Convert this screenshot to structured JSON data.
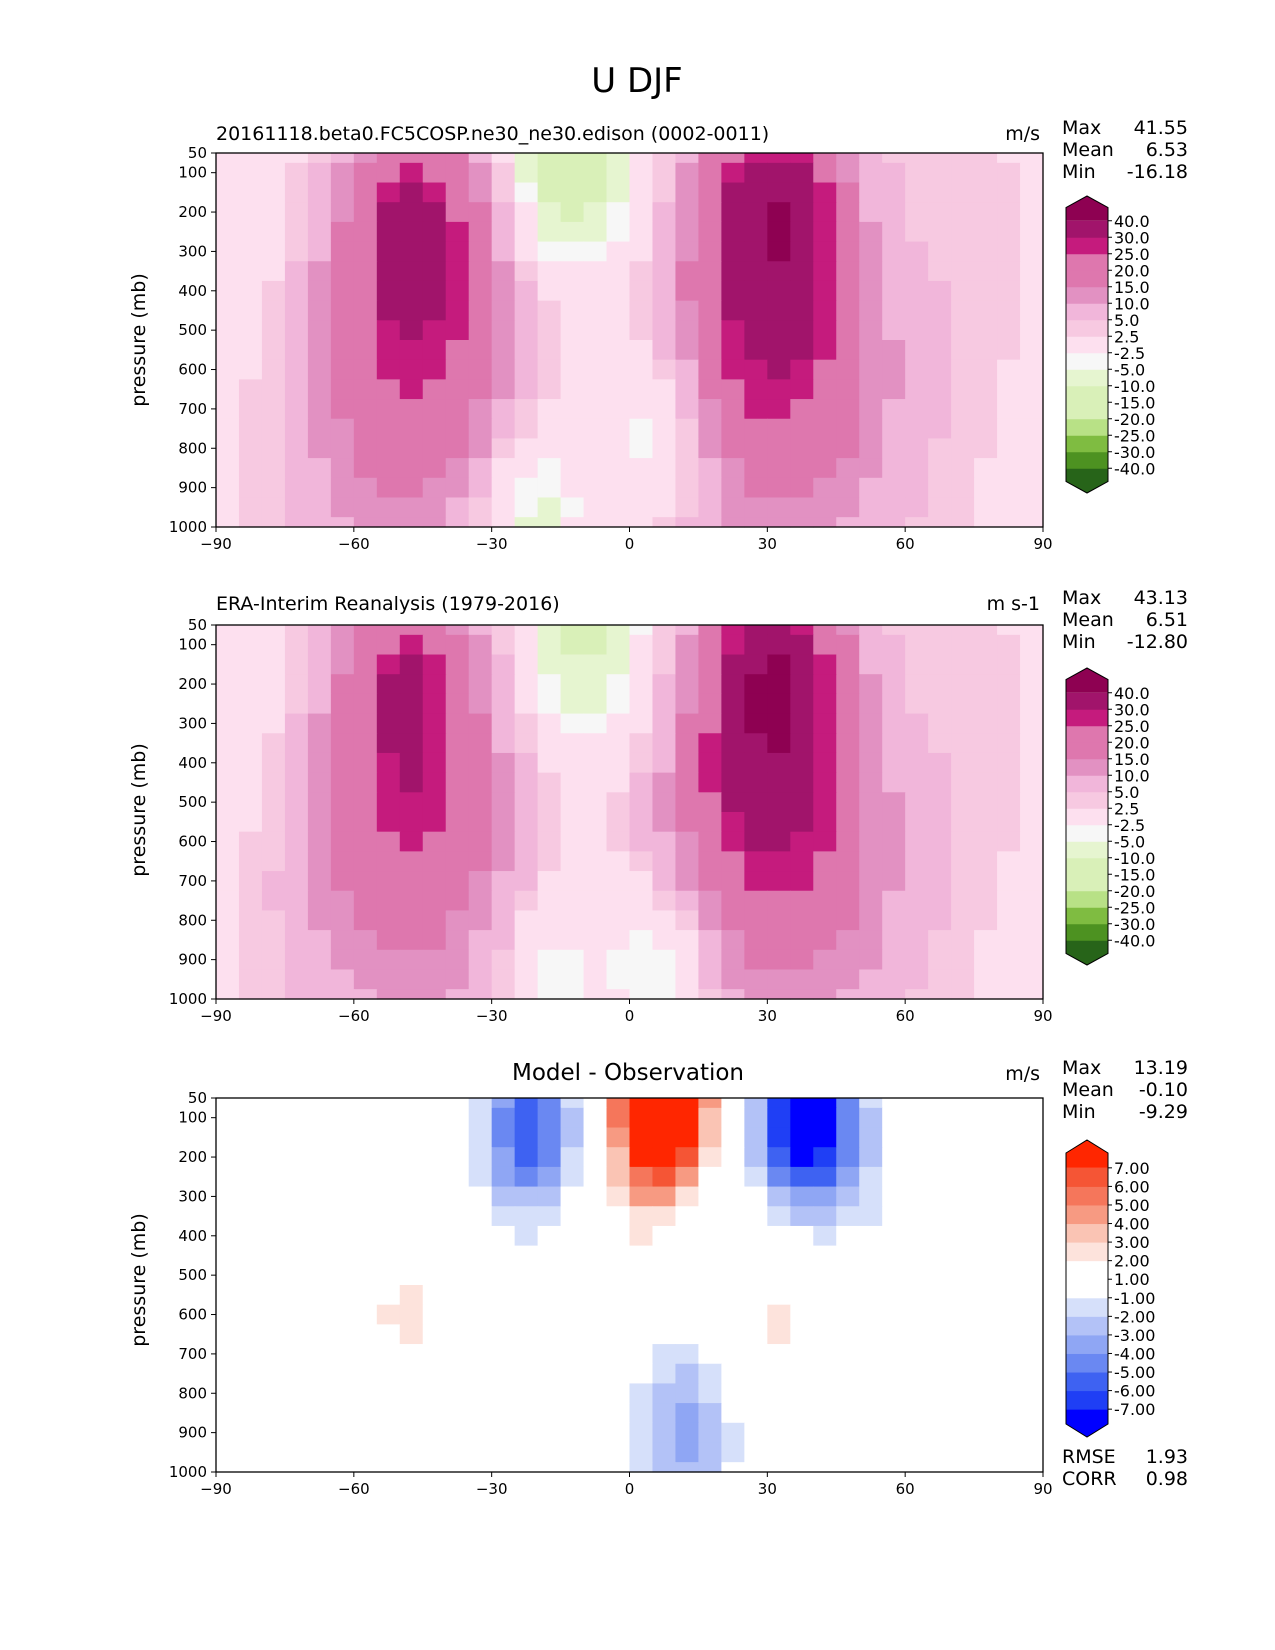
{
  "figure_title": "U DJF",
  "colors": {
    "diverging_green_pink": [
      "#276419",
      "#4d9221",
      "#7fbc41",
      "#b8e186",
      "#d9f0b8",
      "#e6f5d0",
      "#f7f7f7",
      "#fde0ef",
      "#f7c9e1",
      "#f1b6da",
      "#e291c2",
      "#de77ae",
      "#c51b7d",
      "#a1146b",
      "#8e0152"
    ],
    "diff_blue_red": [
      "#0000ff",
      "#1f3ff5",
      "#3e62f2",
      "#6a88f2",
      "#8fa6f4",
      "#b3c2f7",
      "#d6e0fa",
      "#ffffff",
      "#fde3dc",
      "#fac4b4",
      "#f79a82",
      "#f5765b",
      "#f55535",
      "#ff2600"
    ]
  },
  "chart_data": [
    {
      "type": "heatmap",
      "left_title": "20161118.beta0.FC5COSP.ne30_ne30.edison (0002-0011)",
      "units": "m/s",
      "ylabel": "pressure (mb)",
      "xlabel": "",
      "xticks": [
        "−90",
        "−60",
        "−30",
        "0",
        "30",
        "60",
        "90"
      ],
      "yticks": [
        "50",
        "100",
        "200",
        "300",
        "400",
        "500",
        "600",
        "700",
        "800",
        "900",
        "1000"
      ],
      "xlim": [
        -90,
        90
      ],
      "ylim": [
        1000,
        50
      ],
      "stats": [
        {
          "label": "Max",
          "value": "41.55"
        },
        {
          "label": "Mean",
          "value": "6.53"
        },
        {
          "label": "Min",
          "value": "-16.18"
        }
      ],
      "colorbar_levels": [
        "-40.0",
        "-30.0",
        "-25.0",
        "-20.0",
        "-15.0",
        "-10.0",
        "-5.0",
        "-2.5",
        "2.5",
        "5.0",
        "10.0",
        "15.0",
        "20.0",
        "25.0",
        "30.0",
        "40.0"
      ],
      "features": [
        {
          "kind": "jet",
          "lat": -47,
          "p": 250,
          "peak": 35
        },
        {
          "kind": "jet",
          "lat": 31,
          "p": 210,
          "peak": 41.5
        },
        {
          "kind": "easterly",
          "lat": 8,
          "p": 750,
          "min": -12
        },
        {
          "kind": "easterly",
          "lat": -22,
          "p": 950,
          "min": -12
        },
        {
          "kind": "easterly",
          "lat": -13,
          "p": 60,
          "min": -16
        }
      ]
    },
    {
      "type": "heatmap",
      "left_title": "ERA-Interim Reanalysis (1979-2016)",
      "units": "m s-1",
      "ylabel": "pressure (mb)",
      "xlabel": "",
      "xticks": [
        "−90",
        "−60",
        "−30",
        "0",
        "30",
        "60",
        "90"
      ],
      "yticks": [
        "50",
        "100",
        "200",
        "300",
        "400",
        "500",
        "600",
        "700",
        "800",
        "900",
        "1000"
      ],
      "xlim": [
        -90,
        90
      ],
      "ylim": [
        1000,
        50
      ],
      "stats": [
        {
          "label": "Max",
          "value": "43.13"
        },
        {
          "label": "Mean",
          "value": "6.51"
        },
        {
          "label": "Min",
          "value": "-12.80"
        }
      ],
      "colorbar_levels": [
        "-40.0",
        "-30.0",
        "-25.0",
        "-20.0",
        "-15.0",
        "-10.0",
        "-5.0",
        "-2.5",
        "2.5",
        "5.0",
        "10.0",
        "15.0",
        "20.0",
        "25.0",
        "30.0",
        "40.0"
      ],
      "features": [
        {
          "kind": "jet",
          "lat": -48,
          "p": 230,
          "peak": 33
        },
        {
          "kind": "jet",
          "lat": 31,
          "p": 200,
          "peak": 43
        },
        {
          "kind": "easterly",
          "lat": 8,
          "p": 900,
          "min": -12
        },
        {
          "kind": "easterly",
          "lat": -18,
          "p": 950,
          "min": -8
        },
        {
          "kind": "easterly",
          "lat": -10,
          "p": 55,
          "min": -12
        }
      ]
    },
    {
      "type": "heatmap",
      "center_title": "Model - Observation",
      "units": "m/s",
      "ylabel": "pressure (mb)",
      "xlabel": "",
      "xticks": [
        "−90",
        "−60",
        "−30",
        "0",
        "30",
        "60",
        "90"
      ],
      "yticks": [
        "50",
        "100",
        "200",
        "300",
        "400",
        "500",
        "600",
        "700",
        "800",
        "900",
        "1000"
      ],
      "xlim": [
        -90,
        90
      ],
      "ylim": [
        1000,
        50
      ],
      "stats": [
        {
          "label": "Max",
          "value": "13.19"
        },
        {
          "label": "Mean",
          "value": "-0.10"
        },
        {
          "label": "Min",
          "value": "-9.29"
        }
      ],
      "stats_bottom": [
        {
          "label": "RMSE",
          "value": "1.93"
        },
        {
          "label": "CORR",
          "value": "0.98"
        }
      ],
      "colorbar_levels": [
        "-7.00",
        "-6.00",
        "-5.00",
        "-4.00",
        "-3.00",
        "-2.00",
        "-1.00",
        "1.00",
        "2.00",
        "3.00",
        "4.00",
        "5.00",
        "6.00",
        "7.00"
      ],
      "features": [
        {
          "kind": "diff",
          "lat": 38,
          "p": 100,
          "val": -9.3
        },
        {
          "kind": "diff",
          "lat": -22,
          "p": 120,
          "val": -6
        },
        {
          "kind": "diff",
          "lat": 7,
          "p": 50,
          "val": 13
        },
        {
          "kind": "diff",
          "lat": -48,
          "p": 600,
          "val": 2.5
        },
        {
          "kind": "diff",
          "lat": 33,
          "p": 600,
          "val": 2.2
        },
        {
          "kind": "diff",
          "lat": 12,
          "p": 900,
          "val": -3.5
        },
        {
          "kind": "diff",
          "lat": 2,
          "p": 350,
          "val": 1.5
        },
        {
          "kind": "diff",
          "lat": 50,
          "p": 200,
          "val": -1.5
        }
      ]
    }
  ]
}
